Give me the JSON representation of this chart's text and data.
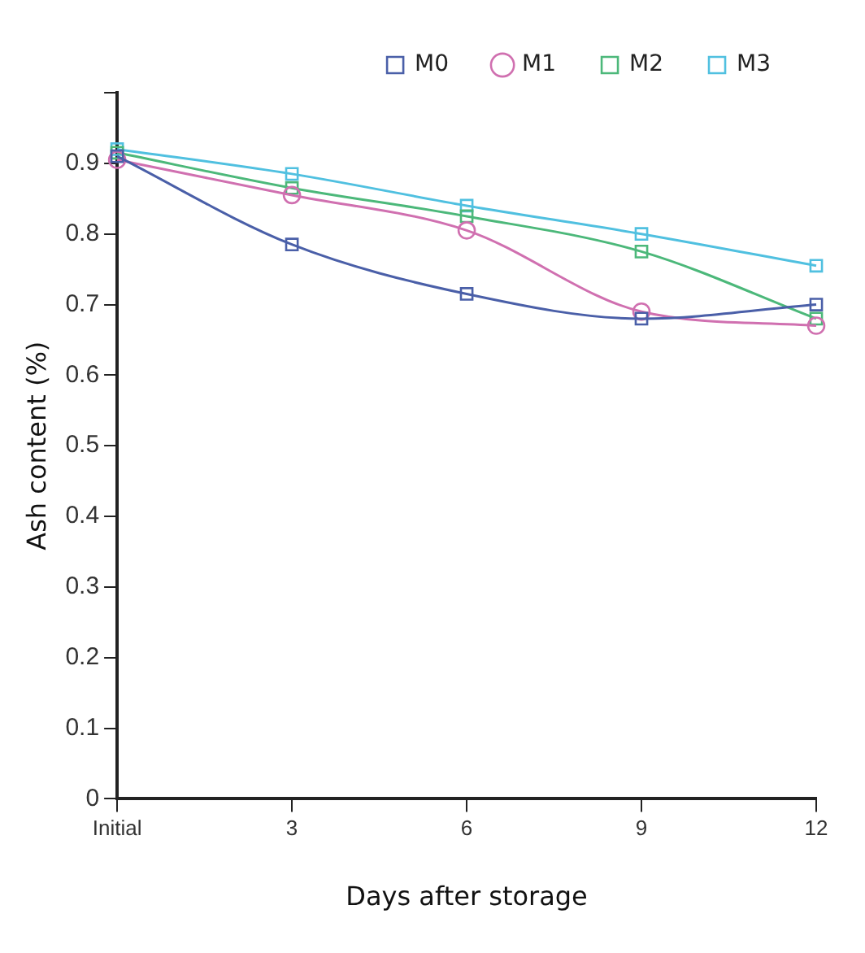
{
  "chart_data": {
    "type": "line",
    "xlabel": "Days after storage",
    "ylabel": "Ash content (%)",
    "categories": [
      "Initial",
      "3",
      "6",
      "9",
      "12"
    ],
    "series": [
      {
        "name": "M0",
        "color": "#4a5fa8",
        "marker": "square",
        "values": [
          0.91,
          0.785,
          0.715,
          0.68,
          0.7
        ]
      },
      {
        "name": "M1",
        "color": "#d070b0",
        "marker": "circle",
        "values": [
          0.905,
          0.855,
          0.805,
          0.69,
          0.67
        ]
      },
      {
        "name": "M2",
        "color": "#4cb87a",
        "marker": "square",
        "values": [
          0.915,
          0.865,
          0.825,
          0.775,
          0.68
        ]
      },
      {
        "name": "M3",
        "color": "#50c0e0",
        "marker": "square",
        "values": [
          0.92,
          0.885,
          0.84,
          0.8,
          0.755
        ]
      }
    ],
    "ylim": [
      0,
      1
    ],
    "yticks": [
      0,
      0.1,
      0.2,
      0.3,
      0.4,
      0.5,
      0.6,
      0.7,
      0.8,
      0.9,
      {
        "value": 1,
        "label": null
      }
    ],
    "grid": false,
    "legend": "top",
    "line_style": "solid"
  }
}
